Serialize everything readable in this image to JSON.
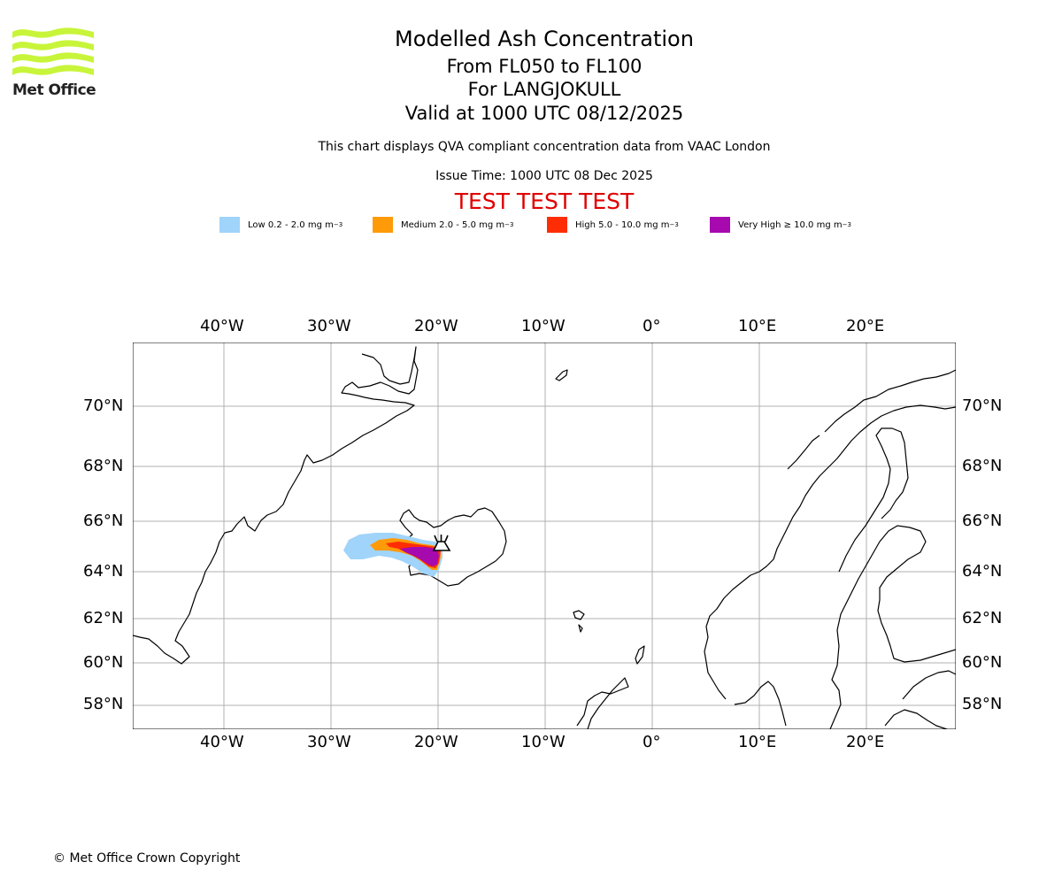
{
  "logo": {
    "text": "Met Office",
    "color": "#c8f53a"
  },
  "header": {
    "title": "Modelled Ash Concentration",
    "levels": "From FL050 to FL100",
    "volcano": "For LANGJOKULL",
    "valid": "Valid at 1000 UTC 08/12/2025",
    "description": "This chart displays QVA compliant concentration data from VAAC London",
    "issue_time": "Issue Time: 1000 UTC 08 Dec 2025",
    "test_banner": "TEST TEST TEST"
  },
  "legend": [
    {
      "label": "Low 0.2 - 2.0 mg m",
      "sup": "−3",
      "color": "#a0d4fa"
    },
    {
      "label": "Medium 2.0 - 5.0 mg m",
      "sup": "−3",
      "color": "#ff9a08"
    },
    {
      "label": "High 5.0 - 10.0 mg m",
      "sup": "−3",
      "color": "#ff2d06"
    },
    {
      "label": "Very High  ≥  10.0 mg m",
      "sup": "−3",
      "color": "#a609ae"
    }
  ],
  "map": {
    "lon_ticks": [
      "40°W",
      "30°W",
      "20°W",
      "10°W",
      "0°",
      "10°E",
      "20°E"
    ],
    "lat_ticks": [
      "70°N",
      "68°N",
      "66°N",
      "64°N",
      "62°N",
      "60°N",
      "58°N"
    ],
    "extent": {
      "lon": [
        -48.5,
        28.2
      ],
      "lat": [
        57,
        72
      ]
    },
    "volcano_symbol": "volcano-icon"
  },
  "footer": {
    "copyright": "© Met Office Crown Copyright"
  }
}
